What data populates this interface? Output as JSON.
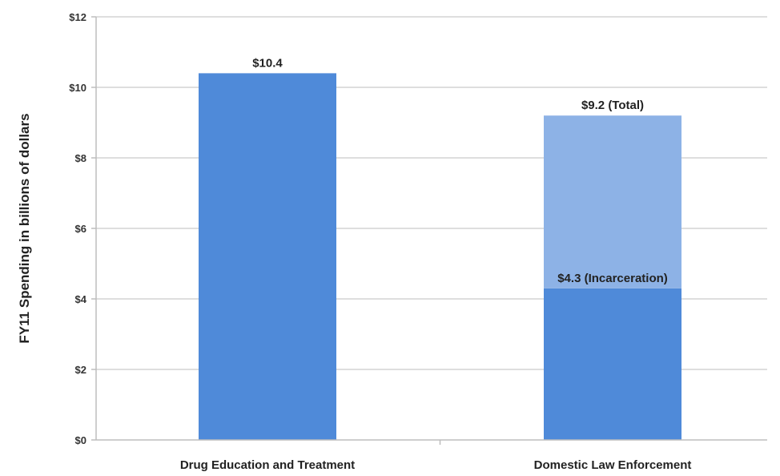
{
  "chart_data": {
    "type": "bar",
    "ylabel": "FY11 Spending in billions of dollars",
    "ylim": [
      0,
      12
    ],
    "ytick_step": 2,
    "ytick_prefix": "$",
    "grid": true,
    "categories": [
      "Drug Education and Treatment",
      "Domestic Law Enforcement"
    ],
    "series": [
      {
        "values": [
          10.4,
          4.3
        ],
        "color": "#4f8ad9"
      },
      {
        "values": [
          0,
          4.9
        ],
        "color": "#8db2e6"
      }
    ],
    "totals": [
      10.4,
      9.2
    ],
    "data_labels": [
      {
        "category": 0,
        "text": "$10.4",
        "at_value": 10.4
      },
      {
        "category": 1,
        "text": "$9.2 (Total)",
        "at_value": 9.2
      },
      {
        "category": 1,
        "text": "$4.3 (Incarceration)",
        "at_value": 4.3
      }
    ]
  }
}
